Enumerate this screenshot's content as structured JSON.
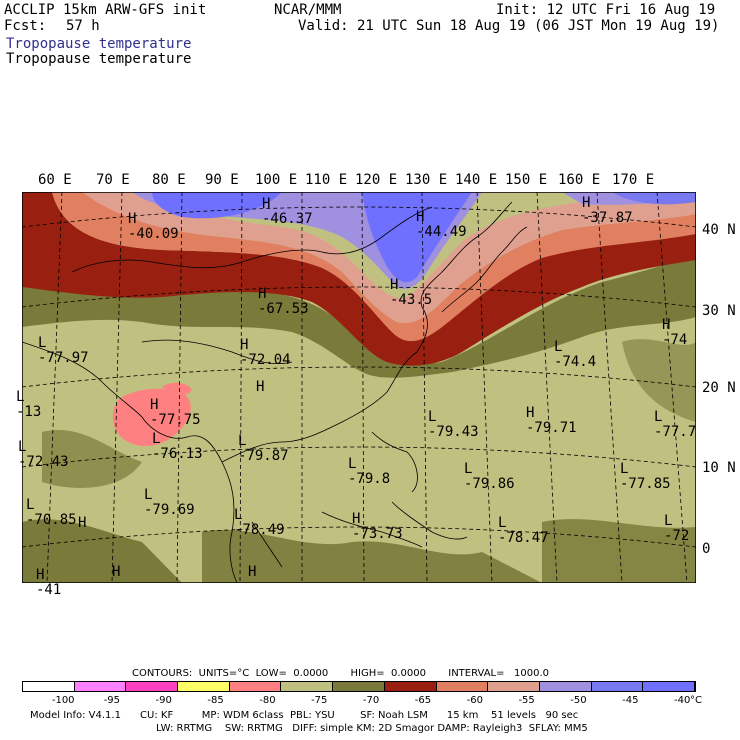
{
  "header": {
    "model": "ACCLIP 15km ARW-GFS init",
    "fcst_label": "Fcst:",
    "fcst_value": "57 h",
    "center": "NCAR/MMM",
    "init": "Init: 12 UTC Fri 16 Aug 19",
    "valid": "Valid: 21 UTC Sun 18 Aug 19 (06 JST Mon 19 Aug 19)",
    "field1": "Tropopause temperature",
    "field2": "Tropopause temperature"
  },
  "axes": {
    "lon_labels": [
      "60 E",
      "70 E",
      "80 E",
      "90 E",
      "100 E",
      "110 E",
      "120 E",
      "130 E",
      "140 E",
      "150 E",
      "160 E",
      "170 E"
    ],
    "lat_labels": [
      "40 N",
      "30 N",
      "20 N",
      "10 N",
      "0"
    ]
  },
  "map_labels": [
    {
      "text": "H",
      "v": "-40.09"
    },
    {
      "text": "H",
      "v": "-46.37"
    },
    {
      "text": "H",
      "v": "-44.49"
    },
    {
      "text": "H",
      "v": "-37.87"
    },
    {
      "text": "H",
      "v": "-43.5"
    },
    {
      "text": "H",
      "v": "-67.53"
    },
    {
      "text": "L",
      "v": "-77.97"
    },
    {
      "text": "H",
      "v": "-72.04"
    },
    {
      "text": "L",
      "v": "-74.4"
    },
    {
      "text": "H",
      "v": "-74"
    },
    {
      "text": "L",
      "v": "-79.43"
    },
    {
      "text": "H",
      "v": "-79.71"
    },
    {
      "text": "L",
      "v": "-77.7"
    },
    {
      "text": "H",
      "v": "-77.75"
    },
    {
      "text": "L",
      "v": "-76.13"
    },
    {
      "text": "L",
      "v": "-79.87"
    },
    {
      "text": "L",
      "v": "-79.8"
    },
    {
      "text": "L",
      "v": "-79.86"
    },
    {
      "text": "L",
      "v": "-77.85"
    },
    {
      "text": "L",
      "v": "-72.43"
    },
    {
      "text": "L",
      "v": "-79.69"
    },
    {
      "text": "L",
      "v": "-78.49"
    },
    {
      "text": "H",
      "v": "-73.73"
    },
    {
      "text": "L",
      "v": "-78.47"
    },
    {
      "text": "L",
      "v": "-72"
    },
    {
      "text": "L",
      "v": "-70.85"
    },
    {
      "text": "L",
      "v": "-13"
    },
    {
      "text": "H",
      "v": ""
    },
    {
      "text": "H",
      "v": ""
    },
    {
      "text": "H",
      "v": ""
    },
    {
      "text": "H",
      "v": ""
    },
    {
      "text": "H",
      "v": "-41"
    }
  ],
  "contours": {
    "line": "CONTOURS:  UNITS=°C  LOW=  0.0000       HIGH=  0.0000       INTERVAL=   1000.0"
  },
  "colorbar": {
    "colors": [
      "#ffffff",
      "#ff80ff",
      "#ff40c0",
      "#ffff66",
      "#ff8080",
      "#c0c080",
      "#7a7a3a",
      "#992010",
      "#e08060",
      "#e0a090",
      "#a090e0",
      "#7878f0",
      "#7070ff"
    ],
    "ticks": [
      "-100",
      "-95",
      "-90",
      "-85",
      "-80",
      "-75",
      "-70",
      "-65",
      "-60",
      "-55",
      "-50",
      "-45",
      "-40"
    ],
    "unit": "°C"
  },
  "model_info": {
    "line1": "Model Info: V4.1.1      CU: KF         MP: WDM 6class  PBL: YSU        SF: Noah LSM      15 km    51 levels   90 sec",
    "line2": "LW: RRTMG    SW: RRTMG   DIFF: simple KM: 2D Smagor DAMP: Rayleigh3  SFLAY: MM5"
  }
}
